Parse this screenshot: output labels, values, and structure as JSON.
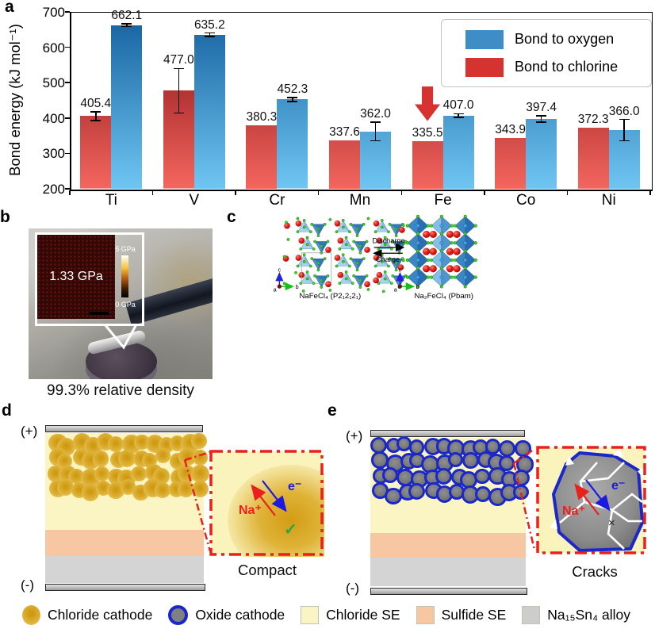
{
  "panels": {
    "a": {
      "label": "a"
    },
    "b": {
      "label": "b",
      "inset_value": "1.33 GPa",
      "scale_max": "5 GPa",
      "scale_min": "0 GPa",
      "caption": "99.3% relative density"
    },
    "c": {
      "label": "c",
      "forward": "Discharge",
      "backward": "Charge",
      "left_formula": "NaFeCl₄ (P2₁2₁2₁)",
      "right_formula": "Na₂FeCl₄ (Pbam)",
      "axis_a": "a",
      "axis_b": "b",
      "axis_c": "c"
    },
    "d": {
      "label": "d",
      "positive": "(+)",
      "negative": "(-)",
      "ion": "Na⁺",
      "electron": "e⁻",
      "check": "✓",
      "caption": "Compact"
    },
    "e": {
      "label": "e",
      "positive": "(+)",
      "negative": "(-)",
      "ion": "Na⁺",
      "electron": "e⁻",
      "cross": "×",
      "caption": "Cracks"
    }
  },
  "chart_data": {
    "type": "bar",
    "title": "",
    "xlabel": "",
    "ylabel": "Bond energy (kJ mol⁻¹)",
    "ylim": [
      200,
      700
    ],
    "yticks": [
      200,
      300,
      400,
      500,
      600,
      700
    ],
    "categories": [
      "Ti",
      "V",
      "Cr",
      "Mn",
      "Fe",
      "Co",
      "Ni"
    ],
    "series": [
      {
        "name": "Bond to chlorine",
        "color": "#d63230",
        "gradient_top": "#7e0a10",
        "gradient_bottom": "#f4665e",
        "values": [
          405.4,
          477.0,
          380.3,
          337.6,
          335.5,
          343.9,
          372.3
        ],
        "errors": [
          12,
          63,
          0,
          0,
          0,
          0,
          0
        ]
      },
      {
        "name": "Bond to oxygen",
        "color": "#3f8dc6",
        "gradient_top": "#145f9e",
        "gradient_bottom": "#6fc6f2",
        "values": [
          662.1,
          635.2,
          452.3,
          362.0,
          407.0,
          397.4,
          366.0
        ],
        "errors": [
          4,
          5,
          6,
          26,
          5,
          9,
          30
        ]
      }
    ],
    "legend_order": [
      1,
      0
    ],
    "legend_position": "top-right",
    "grid": false,
    "annotation": {
      "shape": "down-arrow",
      "color": "#d63230",
      "category": "Fe",
      "series": "Bond to chlorine"
    }
  },
  "legend": {
    "items": [
      {
        "label": "Chloride cathode",
        "swatch": "gold-circle"
      },
      {
        "label": "Oxide cathode",
        "swatch": "grey-circle-blue-ring"
      },
      {
        "label": "Chloride SE",
        "swatch": "square",
        "color": "#fbf5c5"
      },
      {
        "label": "Sulfide SE",
        "swatch": "square",
        "color": "#f6c7a0"
      },
      {
        "label": "Na₁₅Sn₄ alloy",
        "swatch": "square",
        "color": "#cdcdcd"
      }
    ]
  }
}
